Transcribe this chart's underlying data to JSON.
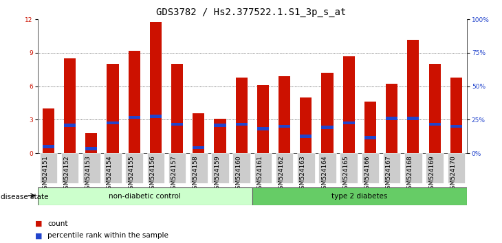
{
  "title": "GDS3782 / Hs2.377522.1.S1_3p_s_at",
  "samples": [
    "GSM524151",
    "GSM524152",
    "GSM524153",
    "GSM524154",
    "GSM524155",
    "GSM524156",
    "GSM524157",
    "GSM524158",
    "GSM524159",
    "GSM524160",
    "GSM524161",
    "GSM524162",
    "GSM524163",
    "GSM524164",
    "GSM524165",
    "GSM524166",
    "GSM524167",
    "GSM524168",
    "GSM524169",
    "GSM524170"
  ],
  "count_values": [
    4.0,
    8.5,
    1.8,
    8.0,
    9.2,
    11.8,
    8.0,
    3.6,
    3.1,
    6.8,
    6.1,
    6.9,
    5.0,
    7.2,
    8.7,
    4.6,
    6.2,
    10.2,
    8.0,
    6.8
  ],
  "percentile_values": [
    0.6,
    2.5,
    0.4,
    2.7,
    3.2,
    3.3,
    2.6,
    0.5,
    2.5,
    2.6,
    2.2,
    2.4,
    1.5,
    2.3,
    2.7,
    1.4,
    3.1,
    3.1,
    2.6,
    2.4
  ],
  "nd_count": 10,
  "t2d_count": 10,
  "ylim_left": [
    0,
    12
  ],
  "ylim_right": [
    0,
    100
  ],
  "yticks_left": [
    0,
    3,
    6,
    9,
    12
  ],
  "yticks_right": [
    0,
    25,
    50,
    75,
    100
  ],
  "ytick_labels_right": [
    "0%",
    "25%",
    "50%",
    "75%",
    "100%"
  ],
  "bar_color_count": "#cc1100",
  "bar_color_percentile": "#2244cc",
  "non_diabetic_label": "non-diabetic control",
  "type2_label": "type 2 diabetes",
  "disease_state_label": "disease state",
  "non_diabetic_color": "#ccffcc",
  "type2_color": "#66cc66",
  "legend_count": "count",
  "legend_percentile": "percentile rank within the sample",
  "bar_width": 0.55,
  "title_fontsize": 10,
  "tick_fontsize": 6.5,
  "label_fontsize": 7.5,
  "grid_yticks": [
    3,
    6,
    9
  ]
}
